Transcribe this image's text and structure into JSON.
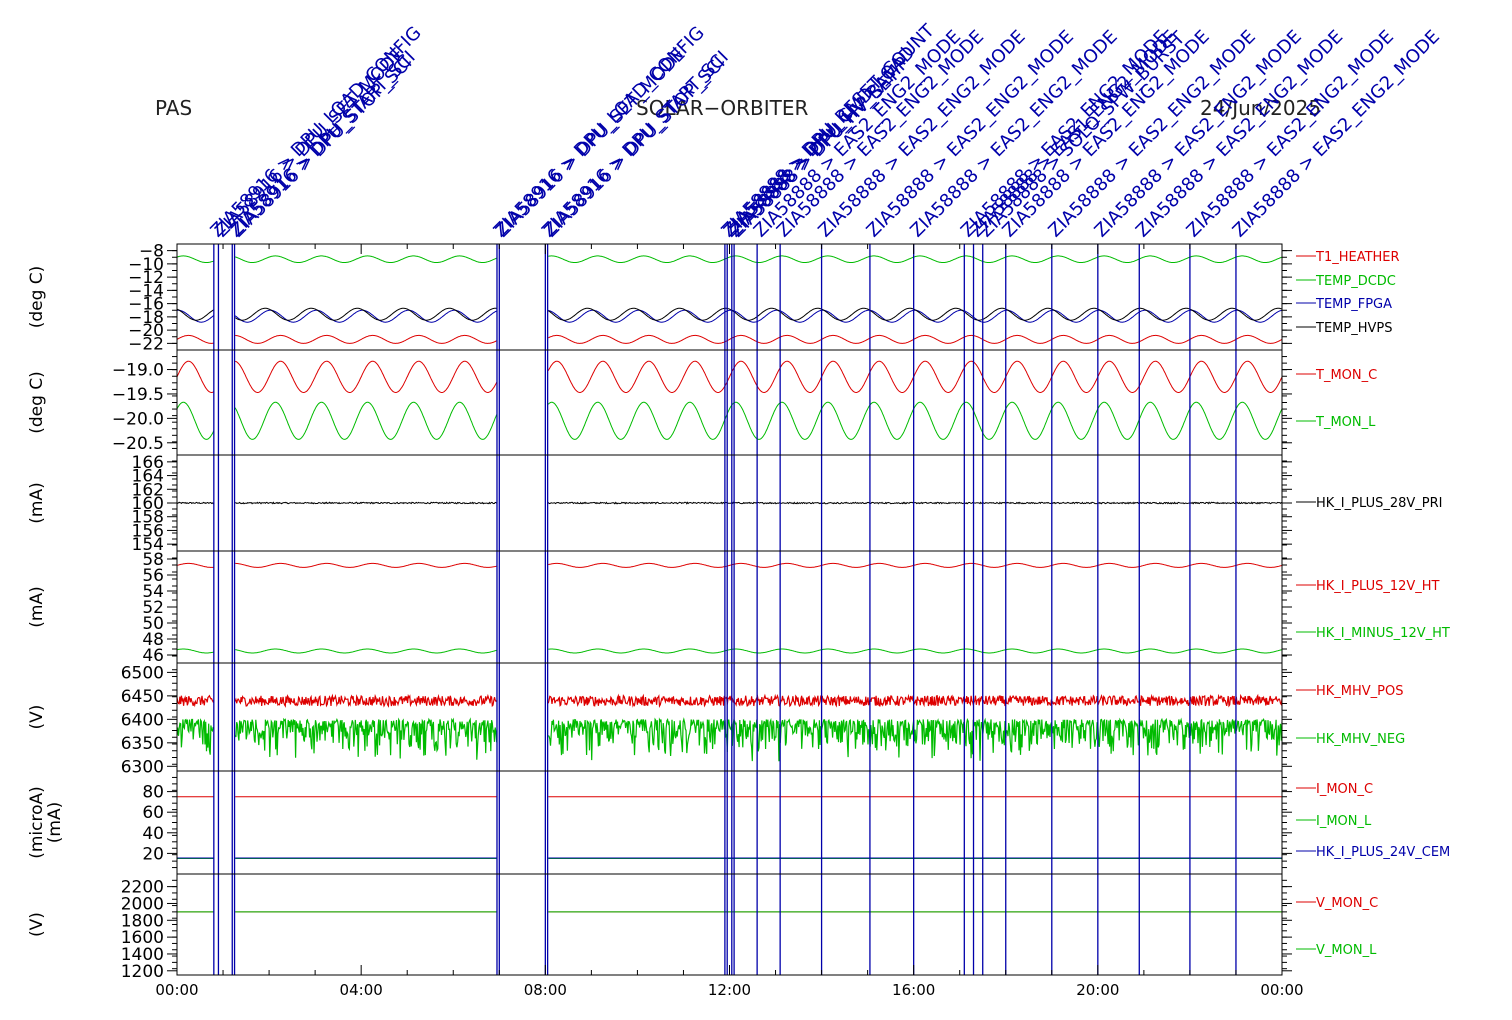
{
  "header": {
    "instrument": "PAS",
    "mission": "SOLAR−ORBITER",
    "date": "24/Jun/2025"
  },
  "chart_data": {
    "type": "line",
    "x_ticks": [
      "00:00",
      "04:00",
      "08:00",
      "12:00",
      "16:00",
      "20:00",
      "00:00"
    ],
    "x_range_hours": [
      0,
      24
    ],
    "grid": false,
    "event_markers": {
      "color": "#0000aa",
      "lines_hours": [
        0.8,
        0.9,
        1.2,
        1.25,
        6.95,
        7.0,
        8.0,
        8.05,
        11.9,
        11.95,
        12.05,
        12.1,
        12.6,
        13.1,
        14.0,
        15.05,
        16.0,
        17.1,
        17.3,
        17.5,
        18.0,
        19.0,
        20.0,
        20.9,
        22.0,
        23.0
      ],
      "labels": [
        {
          "t": 0.8,
          "text": "ZIA58916 > DPU_LOAD_CONFIG"
        },
        {
          "t": 0.9,
          "text": "ZIA58916 > DPU_SET_MODE"
        },
        {
          "t": 1.2,
          "text": "ZIA58916 > DPU_START_SCI"
        },
        {
          "t": 1.25,
          "text": "ZIA58916 > DPU_STOP_SCI"
        },
        {
          "t": 6.95,
          "text": "ZIA58916 > DPU_LOAD_CONFIG"
        },
        {
          "t": 7.0,
          "text": "ZIA58916 > DPU_SET_MODE"
        },
        {
          "t": 8.0,
          "text": "ZIA58916 > DPU_START_SCI"
        },
        {
          "t": 8.05,
          "text": "ZIA58916 > DPU_STOP_SCI"
        },
        {
          "t": 11.9,
          "text": "ZIA58888 > DPU_RESET_COUNT"
        },
        {
          "t": 11.95,
          "text": "ZIA58888 > DPU_CMD_LOAD"
        },
        {
          "t": 12.05,
          "text": "ZIA58888 > DPU_HV_RAMP"
        },
        {
          "t": 12.1,
          "text": "ZIA58888 > DPU_HV_SET"
        },
        {
          "t": 12.6,
          "text": "ZIA58888 > EAS2_ENG2_MODE"
        },
        {
          "t": 13.1,
          "text": "ZIA58888 > EAS2_ENG2_MODE"
        },
        {
          "t": 14.0,
          "text": "ZIA58888 > EAS2_ENG2_MODE"
        },
        {
          "t": 15.05,
          "text": "ZIA58888 > EAS2_ENG2_MODE"
        },
        {
          "t": 16.0,
          "text": "ZIA58888 > EAS2_ENG2_MODE"
        },
        {
          "t": 17.1,
          "text": "ZIA58888 > EAS2_ENG2_MODE"
        },
        {
          "t": 17.3,
          "text": "ZIA58888 > EAS1_ENG2_MODE"
        },
        {
          "t": 17.5,
          "text": "ZIA58888 > SOLO_SPW_BURST"
        },
        {
          "t": 18.0,
          "text": "ZIA58888 > EAS2_ENG2_MODE"
        },
        {
          "t": 19.0,
          "text": "ZIA58888 > EAS2_ENG2_MODE"
        },
        {
          "t": 20.0,
          "text": "ZIA58888 > EAS2_ENG2_MODE"
        },
        {
          "t": 20.9,
          "text": "ZIA58888 > EAS2_ENG2_MODE"
        },
        {
          "t": 22.0,
          "text": "ZIA58888 > EAS2_ENG2_MODE"
        },
        {
          "t": 23.0,
          "text": "ZIA58888 > EAS2_ENG2_MODE"
        }
      ]
    },
    "panels": [
      {
        "ylabel": "(deg C)",
        "ylim": [
          -23,
          -7
        ],
        "yticks": [
          -8,
          -10,
          -12,
          -14,
          -16,
          -18,
          -20,
          -22
        ],
        "yticklabels": [
          "−8",
          "−10",
          "−12",
          "−14",
          "−16",
          "−18",
          "−20",
          "−22"
        ],
        "series": [
          {
            "name": "T1_HEATHER",
            "color": "#dd0000",
            "base": -21.4,
            "amp": 0.6,
            "cycles": 24
          },
          {
            "name": "TEMP_DCDC",
            "color": "#00bb00",
            "base": -9.3,
            "amp": 0.5,
            "cycles": 24
          },
          {
            "name": "TEMP_FPGA",
            "color": "#0000aa",
            "base": -17.9,
            "amp": 0.9,
            "cycles": 24
          },
          {
            "name": "TEMP_HVPS",
            "color": "#000000",
            "base": -17.6,
            "amp": 0.9,
            "cycles": 24
          }
        ]
      },
      {
        "ylabel": "(deg C)",
        "ylim": [
          -20.75,
          -18.6
        ],
        "yticks": [
          -19.0,
          -19.5,
          -20.0,
          -20.5
        ],
        "yticklabels": [
          "−19.0",
          "−19.5",
          "−20.0",
          "−20.5"
        ],
        "series": [
          {
            "name": "T_MON_C",
            "color": "#dd0000",
            "base": -19.15,
            "amp": 0.32,
            "cycles": 24
          },
          {
            "name": "T_MON_L",
            "color": "#00bb00",
            "base": -20.05,
            "amp": 0.38,
            "cycles": 24
          }
        ]
      },
      {
        "ylabel": "(mA)",
        "ylim": [
          153,
          167
        ],
        "yticks": [
          166,
          164,
          162,
          160,
          158,
          156,
          154
        ],
        "yticklabels": [
          "166",
          "164",
          "162",
          "160",
          "158",
          "156",
          "154"
        ],
        "series": [
          {
            "name": "HK_I_PLUS_28V_PRI",
            "color": "#000000",
            "base": 160.0,
            "amp": 0.1,
            "cycles": 0
          }
        ]
      },
      {
        "ylabel": "(mA)",
        "ylim": [
          45,
          59
        ],
        "yticks": [
          58,
          56,
          54,
          52,
          50,
          48,
          46
        ],
        "yticklabels": [
          "58",
          "56",
          "54",
          "52",
          "50",
          "48",
          "46"
        ],
        "series": [
          {
            "name": "HK_I_PLUS_12V_HT",
            "color": "#dd0000",
            "base": 57.2,
            "amp": 0.25,
            "cycles": 24
          },
          {
            "name": "HK_I_MINUS_12V_HT",
            "color": "#00bb00",
            "base": 46.5,
            "amp": 0.25,
            "cycles": 24
          }
        ]
      },
      {
        "ylabel": "(V)",
        "ylim": [
          6290,
          6520
        ],
        "yticks": [
          6500,
          6450,
          6400,
          6350,
          6300
        ],
        "yticklabels": [
          "6500",
          "6450",
          "6400",
          "6350",
          "6300"
        ],
        "series": [
          {
            "name": "HK_MHV_POS",
            "color": "#dd0000",
            "base": 6435,
            "amp": 0,
            "cycles": 0
          },
          {
            "name": "HK_MHV_NEG",
            "color": "#00bb00",
            "base": 6400,
            "amp": 0,
            "cycles": 0
          }
        ]
      },
      {
        "ylabel": "(microA)",
        "ylabel2": "(mA)",
        "ylim": [
          0,
          100
        ],
        "yticks": [
          80,
          60,
          40,
          20
        ],
        "yticklabels": [
          "80",
          "60",
          "40",
          "20"
        ],
        "series": [
          {
            "name": "I_MON_C",
            "color": "#dd0000",
            "base": 75,
            "amp": 0,
            "cycles": 0
          },
          {
            "name": "I_MON_L",
            "color": "#00bb00",
            "base": 15,
            "amp": 0,
            "cycles": 0
          },
          {
            "name": "HK_I_PLUS_24V_CEM",
            "color": "#0000aa",
            "base": 15.5,
            "amp": 0,
            "cycles": 0
          }
        ]
      },
      {
        "ylabel": "(V)",
        "ylim": [
          1150,
          2350
        ],
        "yticks": [
          2200,
          2000,
          1800,
          1600,
          1400,
          1200
        ],
        "yticklabels": [
          "2200",
          "2000",
          "1800",
          "1600",
          "1400",
          "1200"
        ],
        "series": [
          {
            "name": "V_MON_C",
            "color": "#dd0000",
            "base": 1900,
            "amp": 0,
            "cycles": 0
          },
          {
            "name": "V_MON_L",
            "color": "#00bb00",
            "base": 1900,
            "amp": 0,
            "cycles": 0
          }
        ]
      }
    ]
  }
}
